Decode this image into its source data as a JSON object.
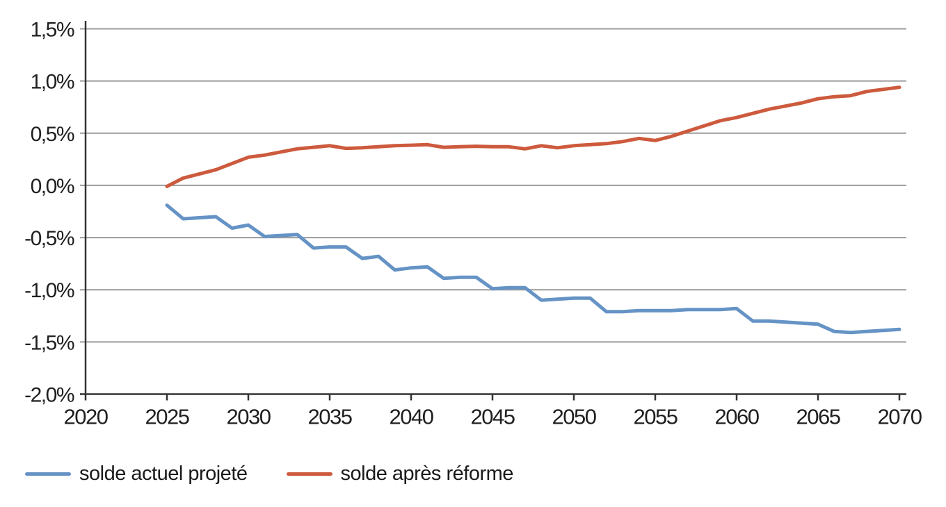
{
  "chart_data": {
    "type": "line",
    "title": "",
    "xlabel": "",
    "ylabel": "",
    "grid": "horizontal",
    "legend_position": "bottom-left",
    "colors": {
      "grid": "#9b9b9b",
      "axis": "#333333",
      "text": "#1f1f1f"
    },
    "x_axis": {
      "min": 2020,
      "max": 2070,
      "tick_interval": 5,
      "tick_values": [
        2020,
        2025,
        2030,
        2035,
        2040,
        2045,
        2050,
        2055,
        2060,
        2065,
        2070
      ],
      "tick_labels": [
        "2020",
        "2025",
        "2030",
        "2035",
        "2040",
        "2045",
        "2050",
        "2055",
        "2060",
        "2065",
        "2070"
      ]
    },
    "y_axis": {
      "min": -2.0,
      "max": 1.5,
      "tick_interval": 0.5,
      "unit": "% (French decimal format)",
      "tick_values": [
        1.5,
        1.0,
        0.5,
        0.0,
        -0.5,
        -1.0,
        -1.5,
        -2.0
      ],
      "tick_labels": [
        "1,5%",
        "1,0%",
        "0,5%",
        "0,0%",
        "-0,5%",
        "-1,0%",
        "-1,5%",
        "-2,0%"
      ]
    },
    "x": [
      2025,
      2026,
      2027,
      2028,
      2029,
      2030,
      2031,
      2032,
      2033,
      2034,
      2035,
      2036,
      2037,
      2038,
      2039,
      2040,
      2041,
      2042,
      2043,
      2044,
      2045,
      2046,
      2047,
      2048,
      2049,
      2050,
      2051,
      2052,
      2053,
      2054,
      2055,
      2056,
      2057,
      2058,
      2059,
      2060,
      2061,
      2062,
      2063,
      2064,
      2065,
      2066,
      2067,
      2068,
      2069,
      2070
    ],
    "series": [
      {
        "name": "solde actuel projeté",
        "color": "#6593c5",
        "values": [
          -0.19,
          -0.32,
          -0.31,
          -0.3,
          -0.41,
          -0.38,
          -0.49,
          -0.48,
          -0.47,
          -0.6,
          -0.59,
          -0.59,
          -0.7,
          -0.68,
          -0.81,
          -0.79,
          -0.78,
          -0.89,
          -0.88,
          -0.88,
          -0.99,
          -0.98,
          -0.98,
          -1.1,
          -1.09,
          -1.08,
          -1.08,
          -1.21,
          -1.21,
          -1.2,
          -1.2,
          -1.2,
          -1.19,
          -1.19,
          -1.19,
          -1.18,
          -1.3,
          -1.3,
          -1.31,
          -1.32,
          -1.33,
          -1.4,
          -1.41,
          -1.4,
          -1.39,
          -1.38
        ]
      },
      {
        "name": "solde après réforme",
        "color": "#cd5a3d",
        "values": [
          -0.01,
          0.07,
          0.11,
          0.15,
          0.21,
          0.27,
          0.29,
          0.32,
          0.35,
          0.365,
          0.38,
          0.355,
          0.36,
          0.37,
          0.38,
          0.385,
          0.39,
          0.365,
          0.37,
          0.375,
          0.37,
          0.37,
          0.35,
          0.38,
          0.36,
          0.38,
          0.39,
          0.4,
          0.42,
          0.45,
          0.43,
          0.47,
          0.52,
          0.57,
          0.62,
          0.65,
          0.69,
          0.73,
          0.76,
          0.79,
          0.83,
          0.85,
          0.86,
          0.9,
          0.92,
          0.94
        ]
      }
    ]
  },
  "legend": {
    "items": [
      {
        "label": "solde actuel projeté"
      },
      {
        "label": "solde après réforme"
      }
    ]
  }
}
